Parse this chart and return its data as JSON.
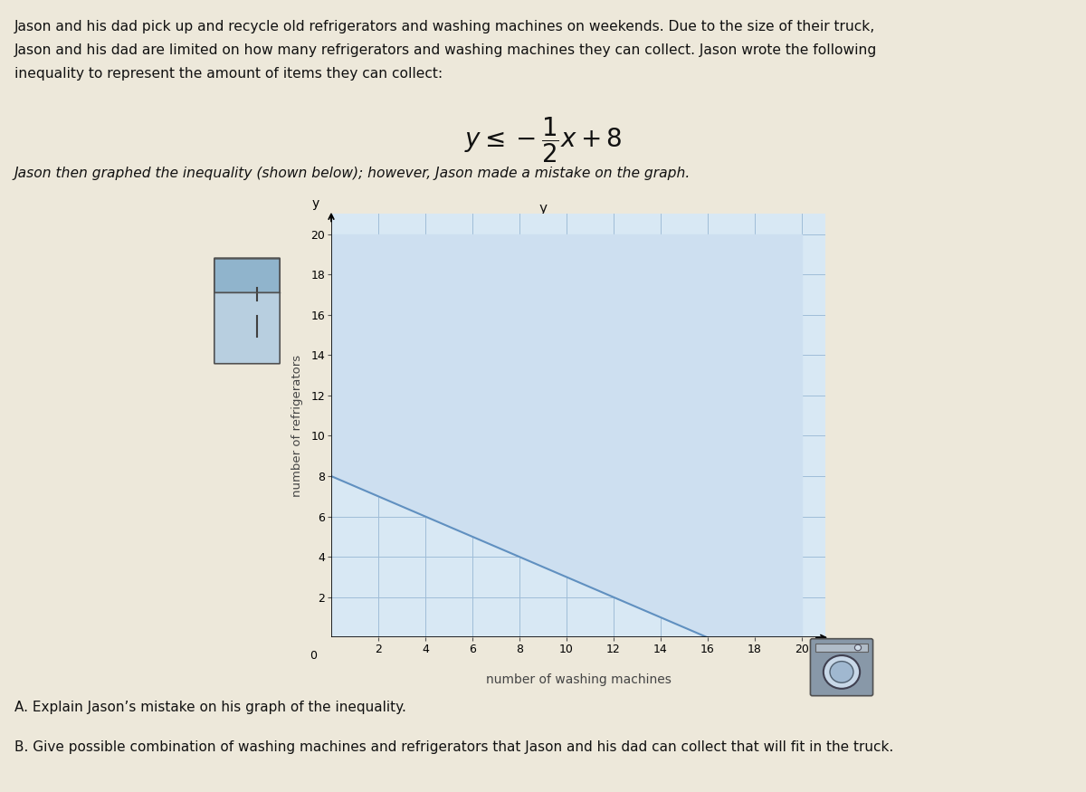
{
  "title_text_line1": "Jason and his dad pick up and recycle old refrigerators and washing machines on weekends. Due to the size of their truck,",
  "title_text_line2": "Jason and his dad are limited on how many refrigerators and washing machines they can collect. Jason wrote the following",
  "title_text_line3": "inequality to represent the amount of items they can collect:",
  "inequality_text": "$y \\leq -\\dfrac{1}{2}x + 8$",
  "graph_subtitle": "Jason then graphed the inequality (shown below); however, Jason made a mistake on the graph.",
  "xlabel": "number of washing machines",
  "ylabel": "number of refrigerators",
  "x_ticks": [
    0,
    2,
    4,
    6,
    8,
    10,
    12,
    14,
    16,
    18,
    20
  ],
  "y_ticks": [
    2,
    4,
    6,
    8,
    10,
    12,
    14,
    16,
    18,
    20
  ],
  "xlim": [
    0,
    21
  ],
  "ylim": [
    0,
    21
  ],
  "line_x": [
    0,
    16
  ],
  "line_y": [
    8,
    0
  ],
  "shade_color": "#cddff0",
  "line_color": "#6090c0",
  "grid_color": "#a0bdd8",
  "background_color": "#ede8da",
  "plot_bg_color": "#d8e8f4",
  "axis_label_color": "#444444",
  "text_color": "#111111",
  "footnote_a": "A. Explain Jason’s mistake on his graph of the inequality.",
  "footnote_b": "B. Give possible combination of washing machines and refrigerators that Jason and his dad can collect that will fit in the truck."
}
